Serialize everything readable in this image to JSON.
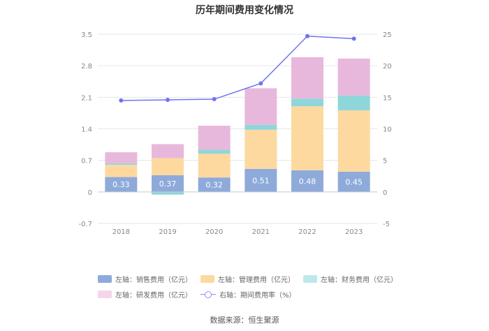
{
  "chart_data": {
    "type": "bar",
    "title": "历年期间费用变化情况",
    "categories": [
      "2018",
      "2019",
      "2020",
      "2021",
      "2022",
      "2023"
    ],
    "y_left": {
      "ticks": [
        "3.5",
        "2.8",
        "2.1",
        "1.4",
        "0.7",
        "0",
        "-0.7"
      ],
      "range": [
        -0.7,
        3.5
      ]
    },
    "y_right": {
      "ticks": [
        "25",
        "20",
        "15",
        "10",
        "5",
        "0",
        "-5"
      ],
      "range": [
        -5,
        25
      ]
    },
    "stacked_series": [
      {
        "name": "左轴：销售费用（亿元）",
        "color": "#8eaadb",
        "values": [
          0.33,
          0.37,
          0.32,
          0.51,
          0.48,
          0.45
        ],
        "show_labels": true
      },
      {
        "name": "左轴：管理费用（亿元）",
        "color": "#fdd9a0",
        "values": [
          0.27,
          0.38,
          0.53,
          0.87,
          1.42,
          1.36
        ],
        "show_labels": false
      },
      {
        "name": "左轴：财务费用（亿元）",
        "color": "#8fd6da",
        "values": [
          0.03,
          -0.06,
          0.09,
          0.11,
          0.17,
          0.33
        ],
        "show_labels": false
      },
      {
        "name": "左轴：研发费用（亿元）",
        "color": "#e8b8dc",
        "values": [
          0.25,
          0.31,
          0.53,
          0.81,
          0.92,
          0.82
        ],
        "show_labels": false
      }
    ],
    "line_series": {
      "name": "右轴：期间费用率（%）",
      "color": "#6f74ee",
      "values": [
        14.5,
        14.6,
        14.7,
        17.2,
        24.7,
        24.3
      ]
    },
    "source": "数据来源：恒生聚源"
  },
  "legend": {
    "row1": [
      "左轴：销售费用（亿元）",
      "左轴：管理费用（亿元）",
      "左轴：财务费用（亿元）"
    ],
    "row2": [
      "左轴：研发费用（亿元）",
      "右轴：期间费用率（%）"
    ]
  }
}
